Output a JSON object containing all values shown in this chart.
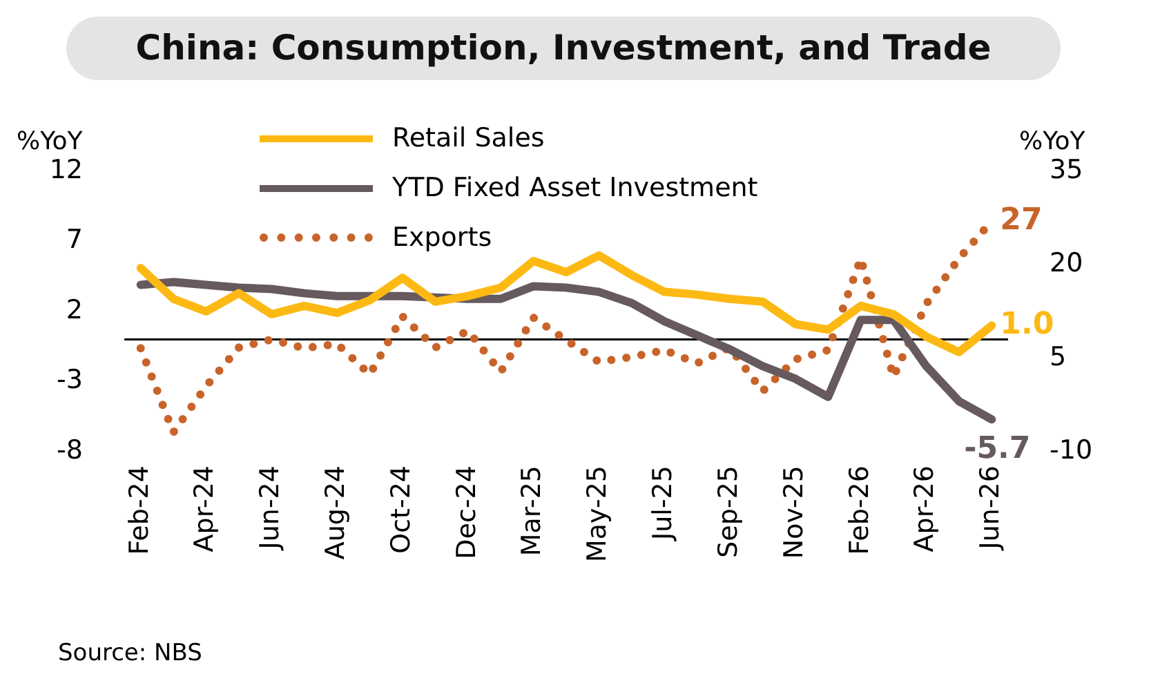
{
  "chart_data": {
    "type": "line",
    "title": "China: Consumption, Investment, and Trade",
    "ylabel": "%YoY",
    "y2label": "%YoY",
    "categories": [
      "Feb-24",
      null,
      "Apr-24",
      null,
      "Jun-24",
      null,
      "Aug-24",
      null,
      "Oct-24",
      null,
      "Dec-24",
      null,
      "Mar-25",
      null,
      "May-25",
      null,
      "Jul-25",
      null,
      "Sep-25",
      null,
      "Nov-25",
      null,
      "Feb-26",
      null,
      "Apr-26",
      null,
      "Jun-26"
    ],
    "series": [
      {
        "name": "Retail Sales",
        "color": "#fdb913",
        "line_style": "solid",
        "values": [
          5.1,
          2.9,
          2.0,
          3.3,
          1.8,
          2.4,
          1.9,
          2.8,
          4.4,
          2.7,
          3.1,
          3.7,
          5.6,
          4.8,
          6.0,
          4.6,
          3.4,
          3.2,
          2.9,
          2.7,
          1.1,
          0.7,
          2.4,
          1.8,
          0.2,
          -0.9,
          1.0
        ],
        "value_labels": [
          null,
          null,
          null,
          null,
          null,
          null,
          null,
          null,
          null,
          null,
          null,
          null,
          null,
          null,
          null,
          null,
          null,
          null,
          null,
          null,
          null,
          null,
          null,
          null,
          null,
          null,
          "1.0"
        ]
      },
      {
        "name": "YTD Fixed Asset Investment",
        "color": "#665a5e",
        "line_style": "solid",
        "values": [
          3.9,
          4.1,
          3.9,
          3.7,
          3.6,
          3.3,
          3.1,
          3.1,
          3.1,
          3.0,
          2.9,
          2.9,
          3.8,
          3.7,
          3.4,
          2.6,
          1.3,
          0.3,
          -0.7,
          -1.9,
          -2.8,
          -4.1,
          1.4,
          1.4,
          -1.9,
          -4.4,
          -5.7
        ],
        "value_labels": [
          null,
          null,
          null,
          null,
          null,
          null,
          null,
          null,
          null,
          null,
          null,
          null,
          null,
          null,
          null,
          null,
          null,
          null,
          null,
          null,
          null,
          null,
          null,
          null,
          null,
          null,
          "-5.7"
        ]
      },
      {
        "name": "Exports",
        "color": "#c8642a",
        "line_style": "dotted",
        "axis": "y2",
        "values": [
          6.6,
          -6.9,
          0.5,
          6.7,
          8.0,
          6.6,
          7.3,
          2.4,
          11.7,
          6.7,
          9.4,
          2.8,
          11.5,
          7.9,
          4.4,
          5.2,
          6.3,
          4.2,
          6.7,
          -0.3,
          4.8,
          6.3,
          21.0,
          2.0,
          13.7,
          21.0,
          27
        ],
        "value_labels": [
          null,
          null,
          null,
          null,
          null,
          null,
          null,
          null,
          null,
          null,
          null,
          null,
          null,
          null,
          null,
          null,
          null,
          null,
          null,
          null,
          null,
          null,
          null,
          null,
          null,
          null,
          "27"
        ]
      }
    ],
    "ylim": [
      -8,
      12
    ],
    "yticks": [
      12,
      7,
      2,
      -3,
      -8
    ],
    "y2lim": [
      -10,
      35
    ],
    "y2ticks": [
      35,
      20,
      5,
      -10
    ],
    "ref_lines": [
      {
        "axis": "y",
        "value": 0,
        "color": "#000000"
      }
    ],
    "legend": "top",
    "grid": false,
    "annotations": [
      "Source: NBS"
    ]
  }
}
